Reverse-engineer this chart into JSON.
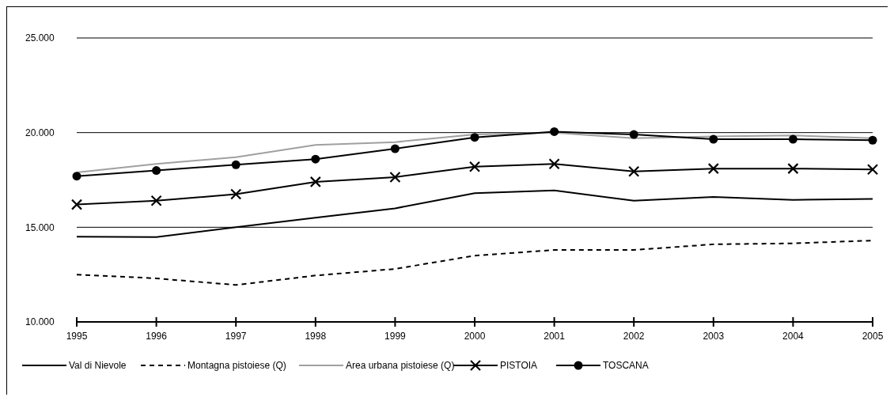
{
  "chart_data": {
    "type": "line",
    "categories": [
      "1995",
      "1996",
      "1997",
      "1998",
      "1999",
      "2000",
      "2001",
      "2002",
      "2003",
      "2004",
      "2005"
    ],
    "ylim": [
      10000,
      25000
    ],
    "yticks": [
      {
        "value": 10000,
        "label": "10.000"
      },
      {
        "value": 15000,
        "label": "15.000"
      },
      {
        "value": 20000,
        "label": "20.000"
      },
      {
        "value": 25000,
        "label": "25.000"
      }
    ],
    "grid": "y",
    "legend": "bottom",
    "series": [
      {
        "name": "Val di Nievole",
        "color": "#000000",
        "line_style": "solid",
        "marker": "none",
        "values": [
          14500,
          14480,
          15000,
          15500,
          16000,
          16800,
          16950,
          16400,
          16600,
          16450,
          16500
        ]
      },
      {
        "name": "Montagna pistoiese (Q)",
        "color": "#000000",
        "line_style": "dashed",
        "marker": "none",
        "values": [
          12500,
          12300,
          11950,
          12450,
          12800,
          13500,
          13800,
          13800,
          14100,
          14150,
          14300
        ]
      },
      {
        "name": "Area urbana pistoiese (Q)",
        "color": "#a0a0a0",
        "line_style": "solid",
        "marker": "none",
        "values": [
          17900,
          18350,
          18700,
          19350,
          19500,
          19900,
          20000,
          19700,
          19800,
          19850,
          19700
        ]
      },
      {
        "name": "PISTOIA",
        "color": "#000000",
        "line_style": "solid",
        "marker": "cross",
        "values": [
          16200,
          16400,
          16750,
          17400,
          17650,
          18200,
          18350,
          17950,
          18100,
          18100,
          18050
        ]
      },
      {
        "name": "TOSCANA",
        "color": "#000000",
        "line_style": "solid",
        "marker": "circle",
        "values": [
          17700,
          18000,
          18300,
          18600,
          19150,
          19750,
          20050,
          19900,
          19650,
          19650,
          19600
        ]
      }
    ]
  }
}
